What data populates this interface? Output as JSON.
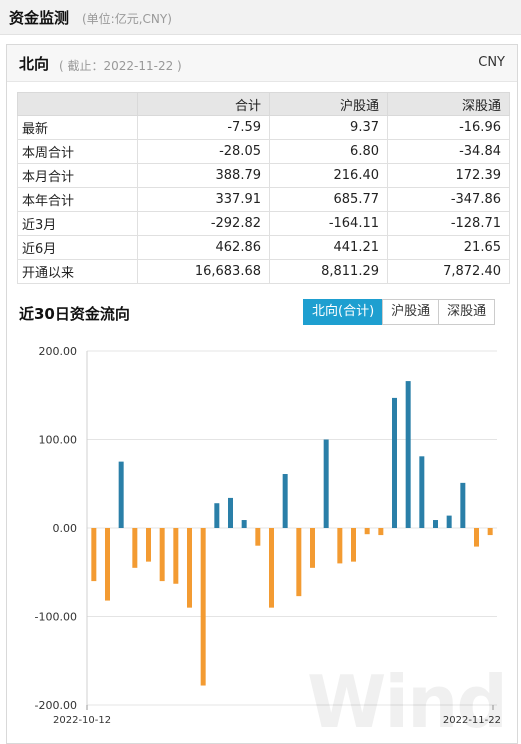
{
  "page": {
    "title": "资金监测",
    "unit": "(单位:亿元,CNY)"
  },
  "panel": {
    "title": "北向",
    "date": "( 截止：2022-11-22 )",
    "currency": "CNY"
  },
  "table": {
    "headers": [
      "",
      "合计",
      "沪股通",
      "深股通"
    ],
    "rows": [
      [
        "最新",
        "-7.59",
        "9.37",
        "-16.96"
      ],
      [
        "本周合计",
        "-28.05",
        "6.80",
        "-34.84"
      ],
      [
        "本月合计",
        "388.79",
        "216.40",
        "172.39"
      ],
      [
        "本年合计",
        "337.91",
        "685.77",
        "-347.86"
      ],
      [
        "近3月",
        "-292.82",
        "-164.11",
        "-128.71"
      ],
      [
        "近6月",
        "462.86",
        "441.21",
        "21.65"
      ],
      [
        "开通以来",
        "16,683.68",
        "8,811.29",
        "7,872.40"
      ]
    ]
  },
  "chart_section": {
    "title": "近30日资金流向"
  },
  "tabs": [
    "北向(合计)",
    "沪股通",
    "深股通"
  ],
  "watermark": "Wind",
  "chart_data": {
    "type": "bar",
    "ylim": [
      -200,
      200
    ],
    "yticks": [
      "200.00",
      "100.00",
      "0.00",
      "-100.00",
      "-200.00"
    ],
    "x_first": "2022-10-12",
    "x_last": "2022-11-22",
    "values": [
      -60,
      -82,
      75,
      -45,
      -38,
      -60,
      -63,
      -90,
      -178,
      28,
      34,
      9,
      -20,
      -90,
      61,
      -77,
      -45,
      100,
      -40,
      -38,
      -7,
      -8,
      147,
      166,
      81,
      9,
      14,
      51,
      -21,
      -8
    ],
    "colors": {
      "positive": "#2a7fa8",
      "negative": "#f39b32"
    },
    "grid": true
  }
}
